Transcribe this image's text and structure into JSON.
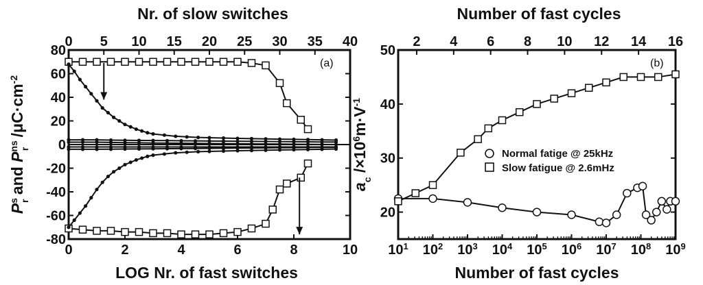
{
  "chart_data": [
    {
      "type": "line",
      "panel_label": "(a)",
      "xlabel": "LOG Nr. of fast  switches",
      "x2label": "Nr. of slow switches",
      "ylabel": {
        "base": "P",
        "sup1": "s",
        "sub1": "r",
        "mid": " and ",
        "sup2": "ns",
        "sub2": "r",
        "unit": " /μC·cm",
        "unit_sup": "-2"
      },
      "xlim": [
        0,
        10
      ],
      "x2lim": [
        0,
        40
      ],
      "ylim": [
        -80,
        80
      ],
      "xticks": [
        0,
        2,
        4,
        6,
        8,
        10
      ],
      "x2ticks": [
        0,
        5,
        10,
        15,
        20,
        25,
        30,
        35,
        40
      ],
      "yticks": [
        -80,
        -60,
        -40,
        -20,
        0,
        20,
        40,
        60,
        80
      ],
      "series": [
        {
          "marker": "square",
          "axis": "top",
          "x": [
            0,
            2,
            4,
            6,
            8,
            10,
            12,
            14,
            16,
            18,
            20,
            22,
            24,
            26,
            28,
            30,
            31,
            33,
            34
          ],
          "y": [
            70,
            70,
            70,
            70,
            70,
            70,
            70,
            70,
            70,
            70,
            70,
            70,
            70,
            69,
            67,
            52,
            35,
            21,
            13
          ]
        },
        {
          "marker": "square",
          "axis": "top",
          "x": [
            0,
            2,
            4,
            6,
            8,
            10,
            12,
            14,
            16,
            18,
            20,
            22,
            24,
            26,
            28,
            29,
            30,
            31,
            33,
            34
          ],
          "y": [
            -71,
            -72,
            -73,
            -73,
            -74,
            -74,
            -75,
            -75,
            -76,
            -76,
            -76,
            -75,
            -74,
            -71,
            -67,
            -55,
            -38,
            -33,
            -28,
            -16
          ]
        },
        {
          "marker": "dot",
          "axis": "bottom",
          "x": [
            0,
            0.2,
            0.4,
            0.6,
            0.8,
            1,
            1.2,
            1.4,
            1.6,
            1.8,
            2,
            2.2,
            2.4,
            2.6,
            2.8,
            3,
            3.4,
            3.8,
            4.2,
            4.6,
            5,
            5.5,
            6,
            6.5,
            7,
            7.5,
            8,
            8.5,
            9,
            9.5
          ],
          "y": [
            68,
            62,
            55,
            49,
            43,
            37,
            31,
            27,
            23,
            20,
            17,
            15,
            13,
            11.5,
            10,
            9,
            8,
            7,
            6.5,
            6,
            5.8,
            5.5,
            5.2,
            5,
            4.8,
            4.6,
            4.4,
            4.2,
            4,
            3.8
          ]
        },
        {
          "marker": "dot",
          "axis": "bottom",
          "x": [
            0,
            0.2,
            0.4,
            0.6,
            0.8,
            1,
            1.2,
            1.4,
            1.6,
            1.8,
            2,
            2.2,
            2.4,
            2.6,
            2.8,
            3,
            3.4,
            3.8,
            4.2,
            4.6,
            5,
            5.5,
            6,
            6.5,
            7,
            7.5,
            8,
            8.5,
            9,
            9.5
          ],
          "y": [
            -70,
            -64,
            -58,
            -52,
            -45,
            -38,
            -32,
            -27,
            -23,
            -20,
            -17,
            -15,
            -13,
            -11.5,
            -10,
            -9,
            -8,
            -7,
            -6.5,
            -6,
            -5.8,
            -5.5,
            -5.2,
            -5,
            -4.8,
            -4.6,
            -4.4,
            -4.2,
            -4,
            -3.8
          ]
        },
        {
          "marker": "dot",
          "axis": "bottom",
          "x": [
            0,
            0.5,
            1,
            1.5,
            2,
            2.5,
            3,
            3.5,
            4,
            4.5,
            5,
            5.5,
            6,
            6.5,
            7,
            7.5,
            8,
            8.5,
            9,
            9.5
          ],
          "y": [
            4,
            4,
            4,
            3.8,
            3.6,
            3.5,
            3.4,
            3.3,
            3.2,
            3.1,
            3,
            2.9,
            2.8,
            2.7,
            2.6,
            2.5,
            2.4,
            2.3,
            2.2,
            2.1
          ]
        },
        {
          "marker": "dot",
          "axis": "bottom",
          "x": [
            0,
            0.5,
            1,
            1.5,
            2,
            2.5,
            3,
            3.5,
            4,
            4.5,
            5,
            5.5,
            6,
            6.5,
            7,
            7.5,
            8,
            8.5,
            9,
            9.5
          ],
          "y": [
            2,
            2,
            2,
            1.8,
            1.6,
            1.5,
            1.3,
            1.2,
            1.1,
            1,
            0.9,
            0.8,
            0.7,
            0.6,
            0.5,
            0.4,
            0.3,
            0.2,
            0.1,
            0
          ]
        },
        {
          "marker": "dot",
          "axis": "bottom",
          "x": [
            0,
            0.5,
            1,
            1.5,
            2,
            2.5,
            3,
            3.5,
            4,
            4.5,
            5,
            5.5,
            6,
            6.5,
            7,
            7.5,
            8,
            8.5,
            9,
            9.5
          ],
          "y": [
            -2,
            -2,
            -2,
            -2,
            -2,
            -2,
            -2,
            -2,
            -2,
            -2,
            -2,
            -2,
            -2,
            -2,
            -2,
            -2,
            -2,
            -2,
            -2,
            -2
          ]
        },
        {
          "marker": "dot",
          "axis": "bottom",
          "x": [
            0,
            0.5,
            1,
            1.5,
            2,
            2.5,
            3,
            3.5,
            4,
            4.5,
            5,
            5.5,
            6,
            6.5,
            7,
            7.5,
            8,
            8.5,
            9,
            9.5
          ],
          "y": [
            -4,
            -4,
            -4,
            -3.9,
            -3.8,
            -3.7,
            -3.6,
            -3.5,
            -3.4,
            -3.3,
            -3.2,
            -3.1,
            -3,
            -2.9,
            -2.8,
            -2.7,
            -2.6,
            -2.5,
            -2.4,
            -2.3
          ]
        }
      ],
      "annotations": [
        {
          "type": "arrow",
          "from": [
            1.25,
            69
          ],
          "to": [
            1.25,
            38
          ]
        },
        {
          "type": "arrow",
          "from": [
            8.2,
            -28
          ],
          "to": [
            8.2,
            -76
          ]
        }
      ]
    },
    {
      "type": "line",
      "panel_label": "(b)",
      "xlabel": "Number of fast cycles",
      "x2label": "Number of fast cycles",
      "ylabel": {
        "base": "a",
        "sub1": "c",
        "unit": " /×10",
        "unit_sup": "6",
        "unit_tail": "m·V",
        "unit_tail_sup": "-1"
      },
      "xscale": "log",
      "xlim": [
        1,
        9
      ],
      "x2lim": [
        1,
        16
      ],
      "ylim": [
        15,
        50
      ],
      "xticks": [
        {
          "base": "10",
          "exp": "1",
          "value": 1
        },
        {
          "base": "10",
          "exp": "2",
          "value": 2
        },
        {
          "base": "10",
          "exp": "3",
          "value": 3
        },
        {
          "base": "10",
          "exp": "4",
          "value": 4
        },
        {
          "base": "10",
          "exp": "5",
          "value": 5
        },
        {
          "base": "10",
          "exp": "6",
          "value": 6
        },
        {
          "base": "10",
          "exp": "7",
          "value": 7
        },
        {
          "base": "10",
          "exp": "8",
          "value": 8
        },
        {
          "base": "10",
          "exp": "9",
          "value": 9
        }
      ],
      "x2ticks": [
        2,
        4,
        6,
        8,
        10,
        12,
        14,
        16
      ],
      "yticks": [
        20,
        30,
        40,
        50
      ],
      "series": [
        {
          "name": "Normal fatige @ 25kHz",
          "marker": "circle",
          "x": [
            1,
            2,
            3,
            4,
            5,
            6,
            6.8,
            7,
            7.3,
            7.6,
            7.9,
            8.05,
            8.15,
            8.3,
            8.45,
            8.6,
            8.75,
            8.85,
            9
          ],
          "y": [
            22.5,
            22.5,
            21.8,
            20.8,
            20,
            19.5,
            18.2,
            18,
            19.5,
            23.5,
            24.5,
            24.8,
            19.5,
            18.5,
            20,
            22,
            20.5,
            22,
            22
          ]
        },
        {
          "name": "Slow fatigue @ 2.6mHz",
          "marker": "square",
          "x": [
            1,
            1.5,
            2,
            2.8,
            3.3,
            3.6,
            4,
            4.5,
            5,
            5.5,
            6,
            6.5,
            7,
            7.5,
            8,
            8.5,
            9
          ],
          "y": [
            22,
            23.5,
            25,
            31,
            33.5,
            35.5,
            37,
            38.5,
            40,
            41,
            42,
            43,
            44,
            45,
            45,
            45,
            45.5
          ]
        }
      ],
      "legend": "center-right"
    }
  ]
}
